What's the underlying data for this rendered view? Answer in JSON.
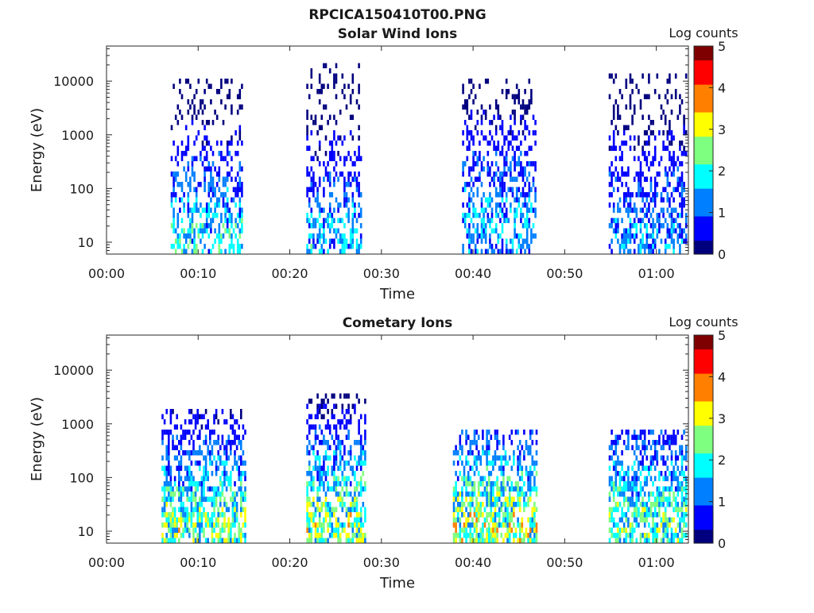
{
  "figure_title": "RPCICA150410T00.PNG",
  "colors": {
    "colormap": [
      "#00007f",
      "#0000ff",
      "#007fff",
      "#00ffff",
      "#7fff7f",
      "#ffff00",
      "#ff7f00",
      "#ff0000",
      "#7f0000"
    ],
    "axis": "#262626"
  },
  "chart_data": [
    {
      "type": "heatmap",
      "title": "Solar Wind Ions",
      "xlabel": "Time",
      "ylabel": "Energy (eV)",
      "yscale": "log",
      "ylim": [
        6,
        45000
      ],
      "xlim_minutes": [
        0,
        63.5
      ],
      "x_ticks": [
        "00:00",
        "00:10",
        "00:20",
        "00:30",
        "00:40",
        "00:50",
        "01:00"
      ],
      "x_tick_minutes": [
        0,
        10,
        20,
        30,
        40,
        50,
        60
      ],
      "y_ticks": [
        "10",
        "100",
        "1000",
        "10000"
      ],
      "y_tick_values": [
        10,
        100,
        1000,
        10000
      ],
      "colorbar": {
        "label": "Log counts",
        "min": 0,
        "max": 5,
        "ticks": [
          "0",
          "1",
          "2",
          "3",
          "4",
          "5"
        ]
      },
      "clusters": [
        {
          "t_start": 7.0,
          "t_end": 14.8,
          "e_min": 6,
          "e_max": 12000,
          "peak_energy": 12,
          "peak_log_counts": 2.3
        },
        {
          "t_start": 21.8,
          "t_end": 27.8,
          "e_min": 6,
          "e_max": 25000,
          "peak_energy": 10,
          "peak_log_counts": 1.9
        },
        {
          "t_start": 38.8,
          "t_end": 46.8,
          "e_min": 6,
          "e_max": 13000,
          "peak_energy": 25,
          "peak_log_counts": 1.8
        },
        {
          "t_start": 54.8,
          "t_end": 63.2,
          "e_min": 6,
          "e_max": 15000,
          "peak_energy": 15,
          "peak_log_counts": 1.6
        }
      ]
    },
    {
      "type": "heatmap",
      "title": "Cometary Ions",
      "xlabel": "Time",
      "ylabel": "Energy (eV)",
      "yscale": "log",
      "ylim": [
        6,
        45000
      ],
      "xlim_minutes": [
        0,
        63.5
      ],
      "x_ticks": [
        "00:00",
        "00:10",
        "00:20",
        "00:30",
        "00:40",
        "00:50",
        "01:00"
      ],
      "x_tick_minutes": [
        0,
        10,
        20,
        30,
        40,
        50,
        60
      ],
      "y_ticks": [
        "10",
        "100",
        "1000",
        "10000"
      ],
      "y_tick_values": [
        10,
        100,
        1000,
        10000
      ],
      "colorbar": {
        "label": "Log counts",
        "min": 0,
        "max": 5,
        "ticks": [
          "0",
          "1",
          "2",
          "3",
          "4",
          "5"
        ]
      },
      "clusters": [
        {
          "t_start": 6.0,
          "t_end": 15.2,
          "e_min": 6,
          "e_max": 2300,
          "peak_energy": 12,
          "peak_log_counts": 3.0
        },
        {
          "t_start": 21.8,
          "t_end": 28.2,
          "e_min": 6,
          "e_max": 4500,
          "peak_energy": 15,
          "peak_log_counts": 3.2
        },
        {
          "t_start": 37.8,
          "t_end": 47.0,
          "e_min": 6,
          "e_max": 900,
          "peak_energy": 15,
          "peak_log_counts": 3.3
        },
        {
          "t_start": 54.8,
          "t_end": 63.2,
          "e_min": 6,
          "e_max": 900,
          "peak_energy": 15,
          "peak_log_counts": 2.8
        }
      ]
    }
  ]
}
